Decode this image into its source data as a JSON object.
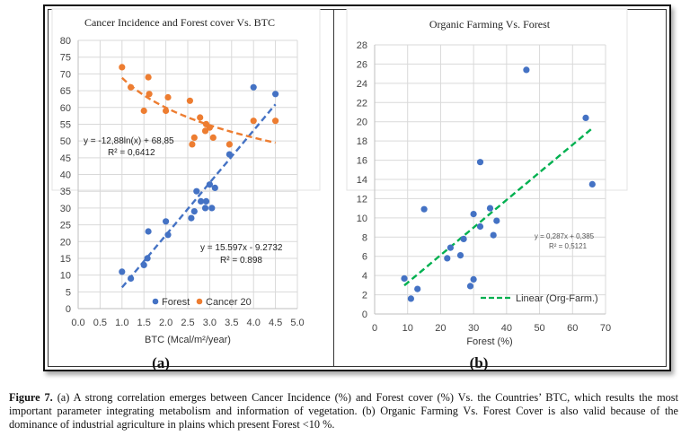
{
  "figure_caption": {
    "label": "Figure 7.",
    "text": " (a) A strong correlation emerges between Cancer Incidence (%) and Forest cover (%) Vs. the Countries’ BTC, which results the most important parameter integrating metabolism and information of vegetation. (b) Organic Farming Vs. Forest Cover is also valid because of the dominance of industrial agriculture in plains which present Forest <10 %."
  },
  "chart_data": [
    {
      "panel_label": "(a)",
      "type": "scatter",
      "title": "Cancer Incidence and Forest cover Vs. BTC",
      "xlabel": "BTC (Mcal/m²/year)",
      "ylabel": "",
      "xlim": [
        0.0,
        5.0
      ],
      "ylim": [
        0,
        80
      ],
      "x_ticks": [
        "0.0",
        "0.5",
        "1.0",
        "1.5",
        "2.0",
        "2.5",
        "3.0",
        "3.5",
        "4.0",
        "4.5",
        "5.0"
      ],
      "y_ticks": [
        "0",
        "5",
        "10",
        "15",
        "20",
        "25",
        "30",
        "35",
        "40",
        "45",
        "50",
        "55",
        "60",
        "65",
        "70",
        "75",
        "80"
      ],
      "grid": true,
      "legend_position": "bottom-inside",
      "series": [
        {
          "name": "Forest",
          "color": "#4472C4",
          "points": [
            [
              1.0,
              11
            ],
            [
              1.2,
              9
            ],
            [
              1.5,
              13
            ],
            [
              1.58,
              15
            ],
            [
              1.6,
              23
            ],
            [
              2.0,
              26
            ],
            [
              2.05,
              22
            ],
            [
              2.58,
              27
            ],
            [
              2.65,
              29
            ],
            [
              2.7,
              35
            ],
            [
              2.8,
              32
            ],
            [
              2.9,
              30
            ],
            [
              2.92,
              32
            ],
            [
              3.0,
              37
            ],
            [
              3.05,
              30
            ],
            [
              3.12,
              36
            ],
            [
              3.45,
              46
            ],
            [
              4.0,
              66
            ],
            [
              4.5,
              64
            ]
          ],
          "trendline": {
            "type": "linear",
            "equation": "y = 15.597x - 9.2732",
            "r2": "R² = 0.898",
            "slope": 15.597,
            "intercept": -9.2732,
            "x_range": [
              1.0,
              4.5
            ],
            "color": "#4472C4"
          }
        },
        {
          "name": "Cancer 20",
          "color": "#ED7D31",
          "points": [
            [
              1.0,
              72
            ],
            [
              1.2,
              66
            ],
            [
              1.5,
              59
            ],
            [
              1.6,
              69
            ],
            [
              1.62,
              64
            ],
            [
              2.0,
              59
            ],
            [
              2.05,
              63
            ],
            [
              2.55,
              62
            ],
            [
              2.6,
              49
            ],
            [
              2.65,
              51
            ],
            [
              2.78,
              57
            ],
            [
              2.9,
              53
            ],
            [
              2.92,
              55
            ],
            [
              3.0,
              54
            ],
            [
              3.08,
              51
            ],
            [
              3.45,
              49
            ],
            [
              4.0,
              56
            ],
            [
              4.5,
              56
            ]
          ],
          "trendline": {
            "type": "logarithmic",
            "equation": "y = -12,88ln(x) + 68,85",
            "r2": "R² = 0,6412",
            "a": -12.88,
            "b": 68.85,
            "x_range": [
              1.0,
              4.5
            ],
            "color": "#ED7D31"
          }
        }
      ]
    },
    {
      "panel_label": "(b)",
      "type": "scatter",
      "title": "Organic Farming Vs. Forest",
      "xlabel": "Forest (%)",
      "ylabel": "",
      "xlim": [
        0,
        70
      ],
      "ylim": [
        0,
        28
      ],
      "x_ticks": [
        "0",
        "10",
        "20",
        "30",
        "40",
        "50",
        "60",
        "70"
      ],
      "y_ticks": [
        "0",
        "2",
        "4",
        "6",
        "8",
        "10",
        "12",
        "14",
        "16",
        "18",
        "20",
        "22",
        "24",
        "26",
        "28"
      ],
      "grid": true,
      "legend_position": "bottom-right-inside",
      "series": [
        {
          "name": "Org-Farm.",
          "color": "#4472C4",
          "points": [
            [
              9,
              3.7
            ],
            [
              11,
              1.6
            ],
            [
              13,
              2.6
            ],
            [
              15,
              10.9
            ],
            [
              22,
              5.8
            ],
            [
              23,
              6.9
            ],
            [
              26,
              6.1
            ],
            [
              27,
              7.8
            ],
            [
              29,
              2.9
            ],
            [
              30,
              3.6
            ],
            [
              30,
              10.4
            ],
            [
              32,
              9.1
            ],
            [
              32,
              15.8
            ],
            [
              35,
              11.0
            ],
            [
              36,
              8.2
            ],
            [
              37,
              9.7
            ],
            [
              46,
              25.4
            ],
            [
              64,
              20.4
            ],
            [
              66,
              13.5
            ]
          ],
          "trendline": {
            "type": "linear",
            "name": "Linear (Org-Farm.)",
            "equation": "y = 0,287x + 0,385",
            "r2": "R² = 0,5121",
            "slope": 0.287,
            "intercept": 0.385,
            "x_range": [
              9,
              66
            ],
            "color": "#00B050"
          }
        }
      ]
    }
  ]
}
